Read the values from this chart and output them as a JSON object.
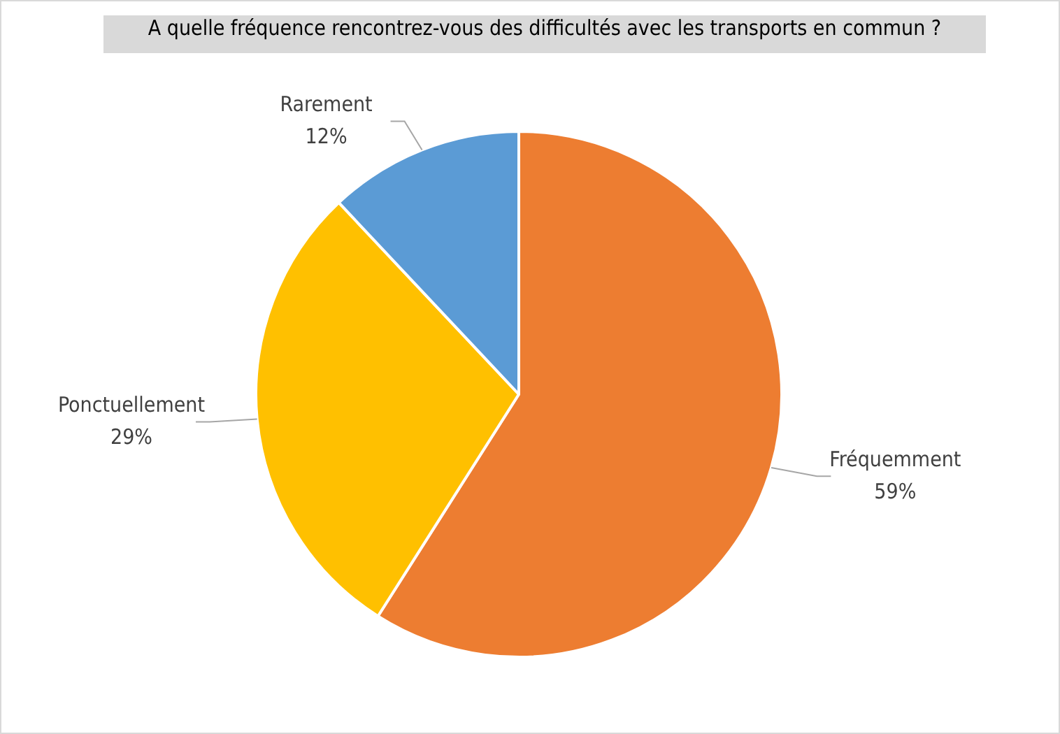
{
  "chart_data": {
    "type": "pie",
    "title": "A quelle fréquence rencontrez-vous des difficultés avec les transports en commun ?",
    "categories": [
      "Fréquemment",
      "Ponctuellement",
      "Rarement"
    ],
    "values": [
      59,
      29,
      12
    ],
    "colors": [
      "#ed7d31",
      "#ffc000",
      "#5b9bd5"
    ],
    "value_labels": [
      "59%",
      "29%",
      "12%"
    ],
    "legend": false
  }
}
